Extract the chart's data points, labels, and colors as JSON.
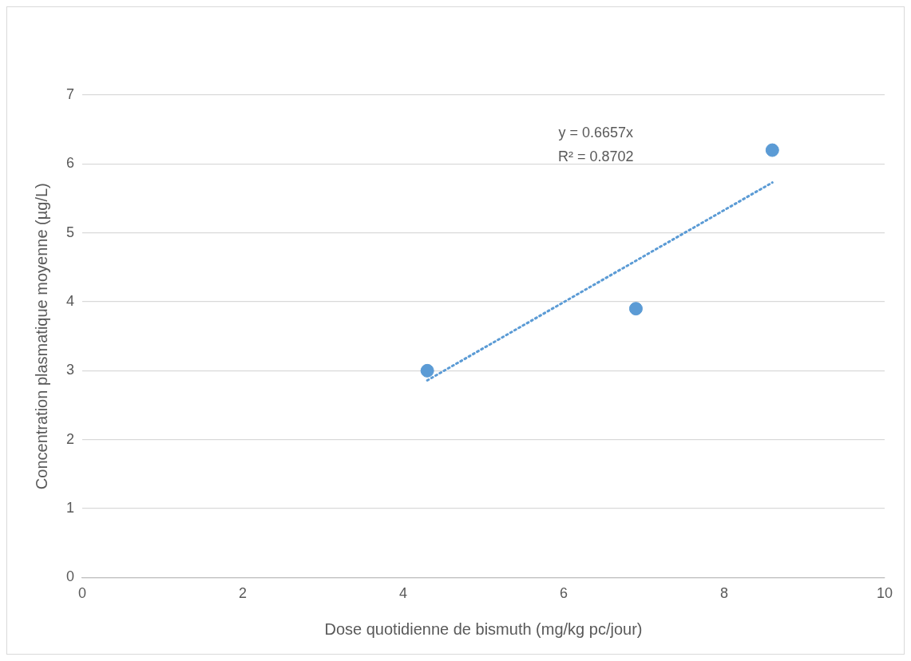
{
  "chart_data": {
    "type": "scatter",
    "xlabel": "Dose quotidienne de bismuth (mg/kg pc/jour)",
    "ylabel": "Concentration plasmatique moyenne (µg/L)",
    "series": [
      {
        "color": "#5b9bd5",
        "x": [
          4.3,
          6.9,
          8.6
        ],
        "values": [
          3.0,
          3.9,
          6.2
        ],
        "marker": "circle"
      },
      {
        "type": "line",
        "color": "#5b9bd5",
        "x": [
          4.3,
          8.6
        ],
        "values": [
          2.86,
          5.73
        ],
        "marker": "none",
        "line_style": "dotted"
      }
    ],
    "annotations": [
      "y = 0.6657x",
      "R² = 0.8702"
    ],
    "xlim": [
      0,
      10
    ],
    "xticks": [
      0,
      2,
      4,
      6,
      8,
      10
    ],
    "ylim": [
      0,
      7
    ],
    "yticks": [
      0,
      1,
      2,
      3,
      4,
      5,
      6,
      7
    ],
    "grid": "y",
    "legend": false
  }
}
